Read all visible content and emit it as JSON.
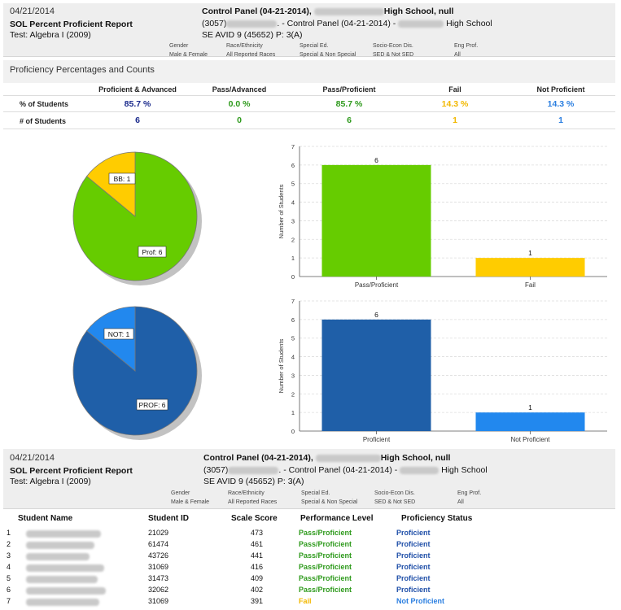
{
  "report": {
    "date": "04/21/2014",
    "title": "SOL Percent Proficient Report",
    "test": "Test: Algebra I (2009)",
    "panel_line1_a": "Control Panel (04-21-2014),",
    "panel_line1_b": "High School, null",
    "panel_line2_a": "(3057)",
    "panel_line2_b": ". - Control Panel (04-21-2014) -",
    "panel_line2_c": "High School",
    "panel_line3": "SE AVID 9 (45652) P: 3(A)"
  },
  "filters": [
    {
      "label": "Gender",
      "value": "Male & Female"
    },
    {
      "label": "Race/Ethnicity",
      "value": "All Reported Races"
    },
    {
      "label": "Special Ed.",
      "value": "Special & Non Special"
    },
    {
      "label": "Socio-Econ Dis.",
      "value": "SED & Not SED"
    },
    {
      "label": "Eng Prof.",
      "value": "All"
    }
  ],
  "proficiency": {
    "section_title": "Proficiency Percentages and Counts",
    "row_percent_label": "% of Students",
    "row_count_label": "# of Students",
    "columns": [
      {
        "header": "Proficient & Advanced",
        "percent": "85.7 %",
        "count": "6",
        "color": "#1a2a8c"
      },
      {
        "header": "Pass/Advanced",
        "percent": "0.0 %",
        "count": "0",
        "color": "#2e9a1c"
      },
      {
        "header": "Pass/Proficient",
        "percent": "85.7 %",
        "count": "6",
        "color": "#2e9a1c"
      },
      {
        "header": "Fail",
        "percent": "14.3 %",
        "count": "1",
        "color": "#f2b800"
      },
      {
        "header": "Not Proficient",
        "percent": "14.3 %",
        "count": "1",
        "color": "#2a7ee0"
      }
    ]
  },
  "pie1": {
    "labels": [
      "BB: 1",
      "Prof: 6"
    ]
  },
  "pie2": {
    "labels": [
      "NOT: 1",
      "PROF: 6"
    ]
  },
  "chart_data": [
    {
      "type": "pie",
      "title": "",
      "slices": [
        {
          "label": "BB: 1",
          "value": 1,
          "color": "#ffcc00"
        },
        {
          "label": "Prof: 6",
          "value": 6,
          "color": "#66cc00"
        }
      ]
    },
    {
      "type": "bar",
      "title": "",
      "categories": [
        "Pass/Proficient",
        "Fail"
      ],
      "values": [
        6,
        1
      ],
      "colors": [
        "#66cc00",
        "#ffcc00"
      ],
      "xlabel": "",
      "ylabel": "Number of Students",
      "ylim": [
        0,
        7
      ],
      "yticks": [
        "0",
        "1",
        "2",
        "3",
        "4",
        "5",
        "6",
        "7"
      ]
    },
    {
      "type": "pie",
      "title": "",
      "slices": [
        {
          "label": "NOT: 1",
          "value": 1,
          "color": "#2288ee"
        },
        {
          "label": "PROF: 6",
          "value": 6,
          "color": "#1f5fa8"
        }
      ]
    },
    {
      "type": "bar",
      "title": "",
      "categories": [
        "Proficient",
        "Not Proficient"
      ],
      "values": [
        6,
        1
      ],
      "colors": [
        "#1f5fa8",
        "#2288ee"
      ],
      "xlabel": "",
      "ylabel": "Number of Students",
      "ylim": [
        0,
        7
      ],
      "yticks": [
        "0",
        "1",
        "2",
        "3",
        "4",
        "5",
        "6",
        "7"
      ]
    }
  ],
  "students": {
    "headers": [
      "Student Name",
      "Student ID",
      "Scale Score",
      "Performance Level",
      "Proficiency Status"
    ],
    "rows": [
      {
        "num": "1",
        "id": "21029",
        "score": "473",
        "level": "Pass/Proficient",
        "status": "Proficient"
      },
      {
        "num": "2",
        "id": "61474",
        "score": "461",
        "level": "Pass/Proficient",
        "status": "Proficient"
      },
      {
        "num": "3",
        "id": "43726",
        "score": "441",
        "level": "Pass/Proficient",
        "status": "Proficient"
      },
      {
        "num": "4",
        "id": "31069",
        "score": "416",
        "level": "Pass/Proficient",
        "status": "Proficient"
      },
      {
        "num": "5",
        "id": "31473",
        "score": "409",
        "level": "Pass/Proficient",
        "status": "Proficient"
      },
      {
        "num": "6",
        "id": "32062",
        "score": "402",
        "level": "Pass/Proficient",
        "status": "Proficient"
      },
      {
        "num": "7",
        "id": "31069",
        "score": "391",
        "level": "Fail",
        "status": "Not Proficient"
      }
    ],
    "colors": {
      "pass": "#2e9a1c",
      "fail": "#f2b800",
      "proficient": "#1f4fa8",
      "not_proficient": "#2a7ee0"
    }
  }
}
